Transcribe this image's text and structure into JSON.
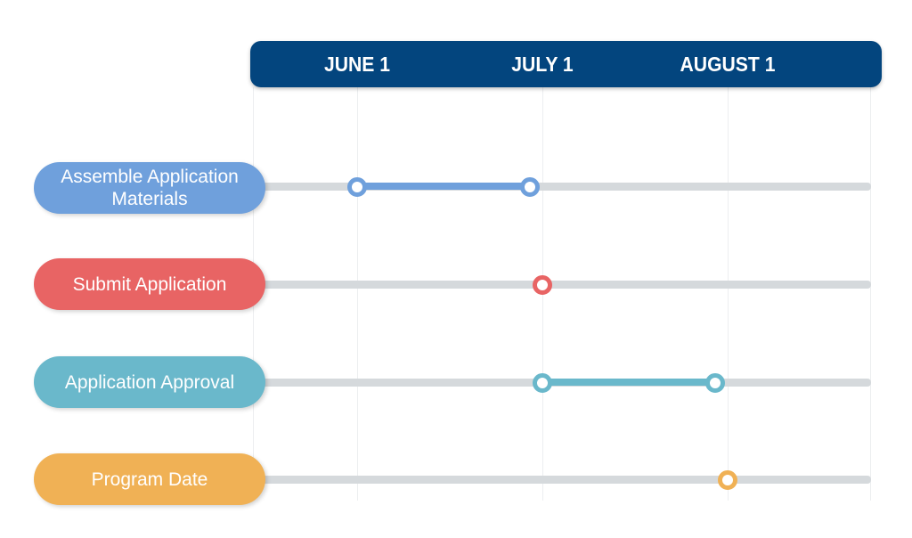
{
  "header": {
    "months": [
      "JUNE 1",
      "JULY 1",
      "AUGUST 1"
    ]
  },
  "rows": [
    {
      "label": "Assemble Application Materials",
      "start": "June 1",
      "end": "June 29",
      "color": "#6fa0dc"
    },
    {
      "label": "Submit Application",
      "start": "July 1",
      "end": "July 1",
      "color": "#e86464"
    },
    {
      "label": "Application Approval",
      "start": "July 1",
      "end": "July 29",
      "color": "#6ab8cb"
    },
    {
      "label": "Program Date",
      "start": "August 1",
      "end": "August 1",
      "color": "#f0b155"
    }
  ],
  "colors": {
    "header": "#03457e",
    "track": "#d5d9dc",
    "grid": "#eceef0"
  }
}
